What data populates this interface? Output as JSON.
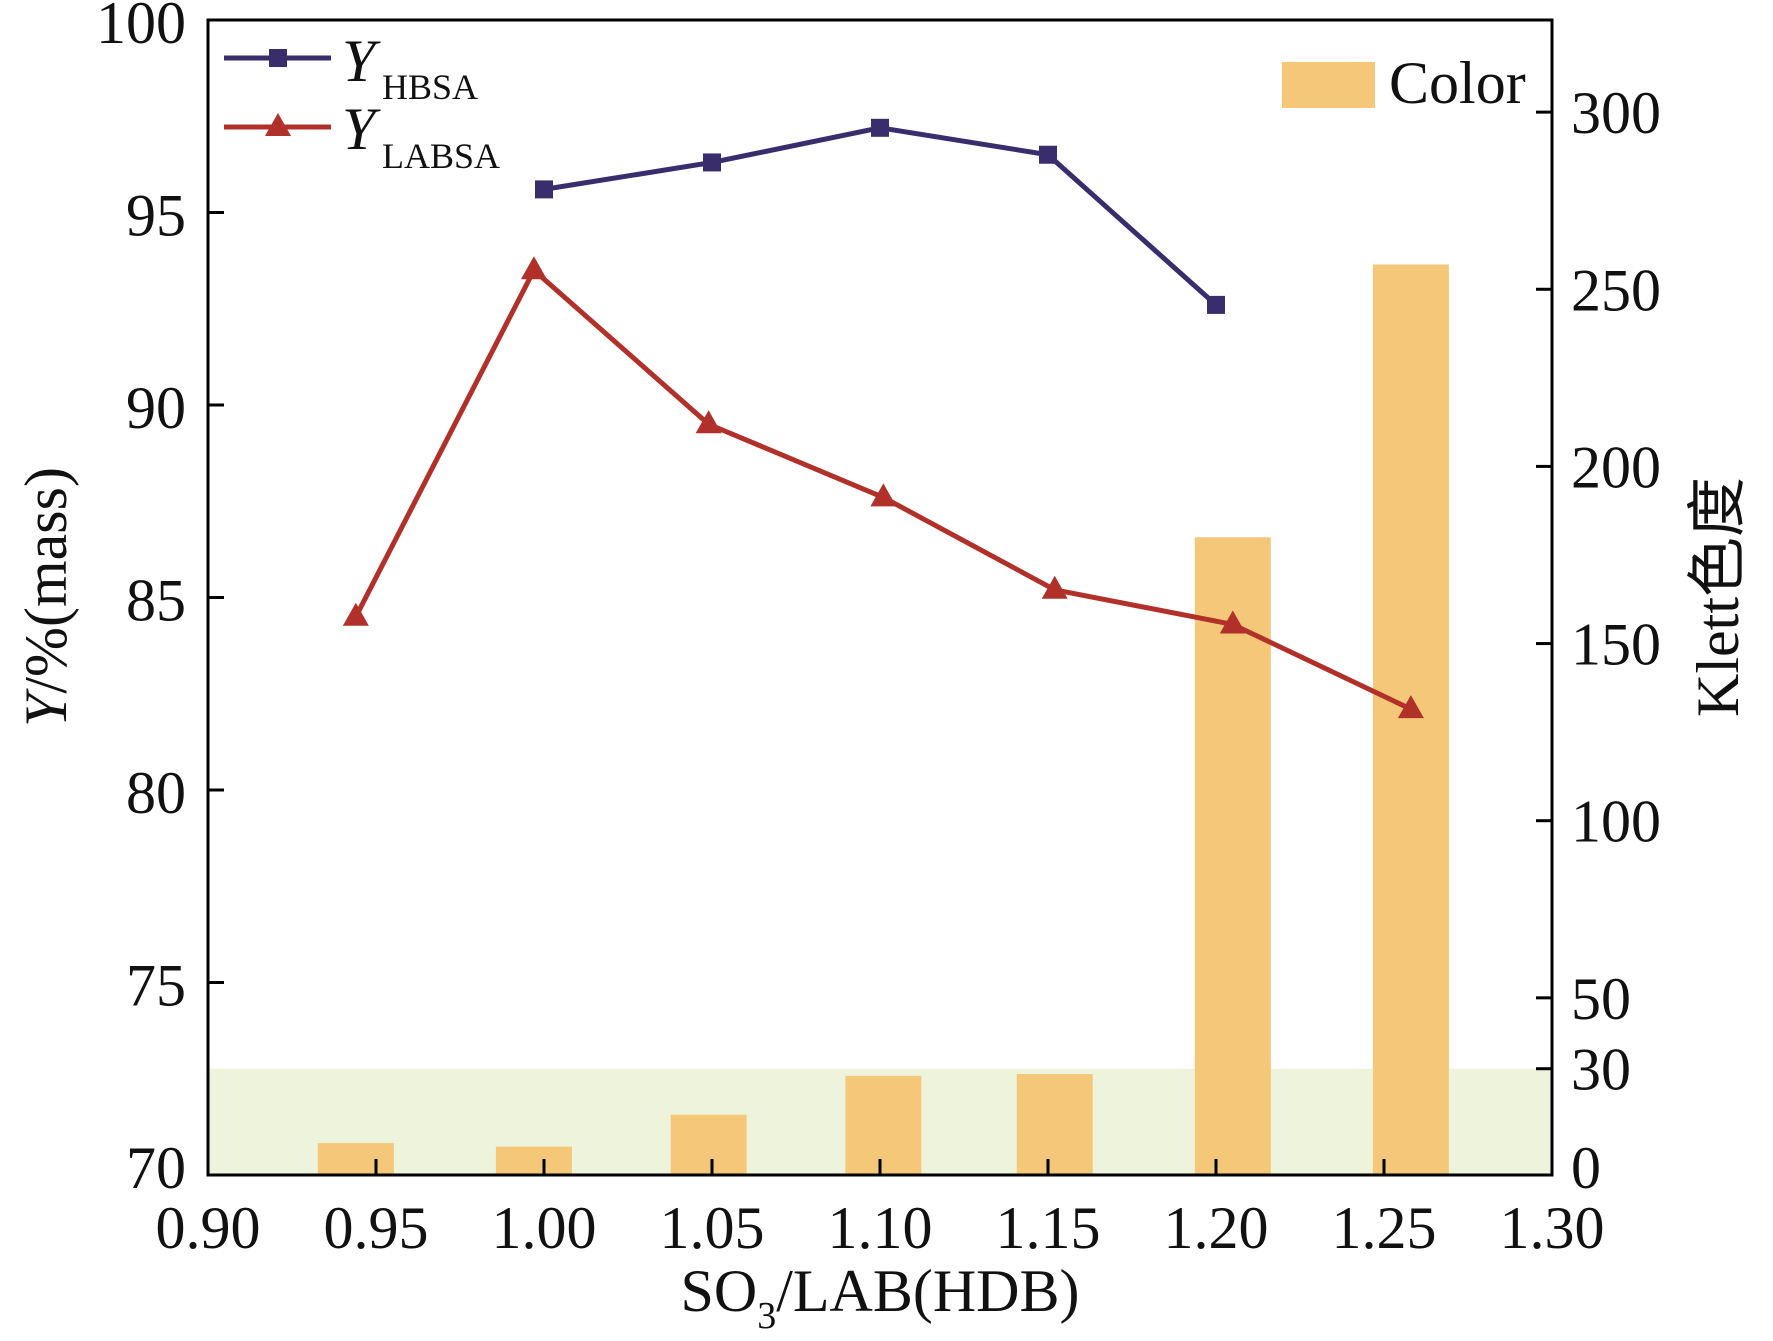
{
  "chart_data": {
    "type": "line",
    "secondary_type": "bar",
    "grid": false,
    "x_axis": {
      "title": {
        "main": "SO",
        "sub": "3",
        "rest": "/LAB(HDB)"
      },
      "range": [
        0.9,
        1.3
      ],
      "ticks": [
        "0.90",
        "0.95",
        "1.00",
        "1.05",
        "1.10",
        "1.15",
        "1.20",
        "1.25",
        "1.30"
      ]
    },
    "y_left": {
      "title": {
        "main": "Y",
        "rest": "/%(mass)"
      },
      "range": [
        70,
        100
      ],
      "ticks": [
        70,
        75,
        80,
        85,
        90,
        95,
        100
      ]
    },
    "y_right": {
      "title": "Klett色度",
      "range": [
        0,
        326
      ],
      "ticks": [
        0,
        30,
        50,
        100,
        150,
        200,
        250,
        300
      ],
      "band": {
        "from": 0,
        "to": 30,
        "color": "#eef4dc"
      }
    },
    "series": [
      {
        "name_main": "Y",
        "name_sub": "HBSA",
        "marker": "square",
        "color": "#3a2d6e",
        "x": [
          1.0,
          1.05,
          1.1,
          1.15,
          1.2
        ],
        "y": [
          95.6,
          96.3,
          97.2,
          96.5,
          92.6
        ]
      },
      {
        "name_main": "Y",
        "name_sub": "LABSA",
        "marker": "triangle",
        "color": "#b2302a",
        "x": [
          0.944,
          0.997,
          1.049,
          1.101,
          1.152,
          1.205,
          1.258
        ],
        "y": [
          84.5,
          93.5,
          89.5,
          87.6,
          85.2,
          84.3,
          82.1
        ]
      }
    ],
    "bar_series": {
      "name": "Color",
      "color": "#f4c878",
      "x": [
        0.944,
        0.997,
        1.049,
        1.101,
        1.152,
        1.205,
        1.258
      ],
      "y": [
        9,
        8,
        17,
        28,
        28.5,
        180,
        257
      ]
    }
  }
}
